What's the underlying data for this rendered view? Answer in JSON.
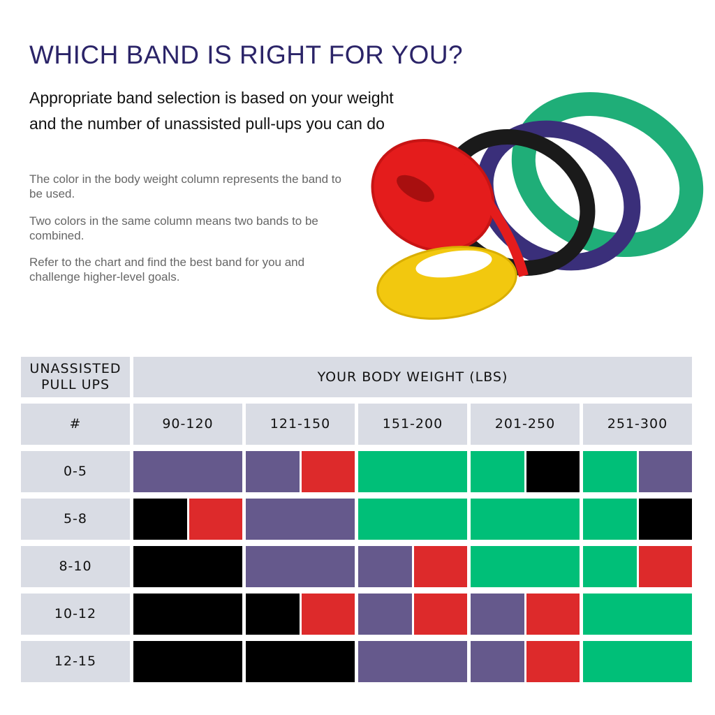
{
  "title": "WHICH BAND IS RIGHT FOR YOU?",
  "lead": "Appropriate band selection is based on your weight and the number of unassisted pull-ups you can do",
  "notes": [
    "The color in the body weight column represents the band to be used.",
    "Two colors in the same column means two bands to be combined.",
    "Refer to the chart and find the best band for you and challenge higher-level goals."
  ],
  "colors": {
    "title": "#2b2468",
    "header_bg": "#d9dce4",
    "purple": "#65598c",
    "red": "#dd2a2b",
    "green": "#00bf78",
    "black": "#000000",
    "yellow": "#f2c80f"
  },
  "image": {
    "band_colors": [
      "green",
      "purple",
      "black",
      "red",
      "yellow"
    ]
  },
  "table": {
    "corner_header": "UNASSISTED PULL UPS",
    "weight_header": "YOUR BODY WEIGHT (LBS)",
    "count_header": "#",
    "weights": [
      "90-120",
      "121-150",
      "151-200",
      "201-250",
      "251-300"
    ],
    "rows": [
      {
        "pullups": "0-5",
        "bands": [
          [
            "purple"
          ],
          [
            "purple",
            "red"
          ],
          [
            "green"
          ],
          [
            "green",
            "black"
          ],
          [
            "green",
            "purple"
          ]
        ]
      },
      {
        "pullups": "5-8",
        "bands": [
          [
            "black",
            "red"
          ],
          [
            "purple"
          ],
          [
            "green"
          ],
          [
            "green"
          ],
          [
            "green",
            "black"
          ]
        ]
      },
      {
        "pullups": "8-10",
        "bands": [
          [
            "black"
          ],
          [
            "purple"
          ],
          [
            "purple",
            "red"
          ],
          [
            "green"
          ],
          [
            "green",
            "red"
          ]
        ]
      },
      {
        "pullups": "10-12",
        "bands": [
          [
            "black"
          ],
          [
            "black",
            "red"
          ],
          [
            "purple",
            "red"
          ],
          [
            "purple",
            "red"
          ],
          [
            "green"
          ]
        ]
      },
      {
        "pullups": "12-15",
        "bands": [
          [
            "black"
          ],
          [
            "black"
          ],
          [
            "purple"
          ],
          [
            "purple",
            "red"
          ],
          [
            "green"
          ]
        ]
      }
    ]
  }
}
